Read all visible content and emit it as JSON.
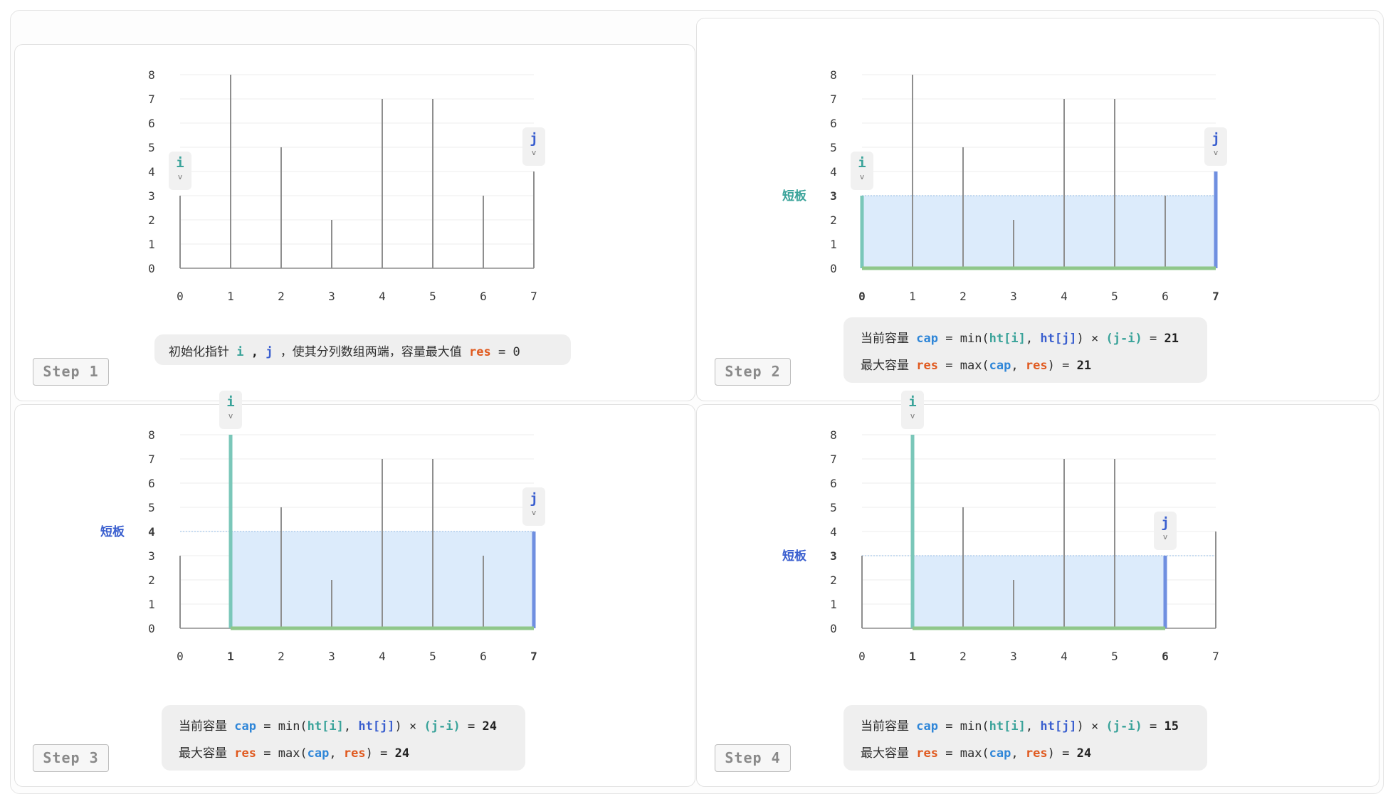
{
  "colors": {
    "bar": "#8e8e8e",
    "axis": "#a9a9a9",
    "grid": "#ececec",
    "pointer_i": "#3aa39a",
    "pointer_j": "#3a5fcf",
    "left_wall": "#7ac7b9",
    "right_wall": "#6f8fe0",
    "bottom": "#8fc78a",
    "water": "#dcebfb",
    "res": "#e0591e",
    "cap": "#2f86d8"
  },
  "heights": [
    3,
    8,
    5,
    2,
    7,
    7,
    3,
    4
  ],
  "y_ticks": [
    "0",
    "1",
    "2",
    "3",
    "4",
    "5",
    "6",
    "7",
    "8"
  ],
  "x_ticks": [
    "0",
    "1",
    "2",
    "3",
    "4",
    "5",
    "6",
    "7"
  ],
  "pointer_labels": {
    "i": "i",
    "j": "j",
    "arrow": "v"
  },
  "short_board_label": "短板",
  "panels": [
    {
      "step_label": "Step 1",
      "i": 0,
      "j": 7,
      "filled": false,
      "text": {
        "pre": "初始化指针",
        "i": "i",
        "comma": ",",
        "j": "j",
        "mid": "，使其分列数组两端，容量最大值",
        "res": "res",
        "eq": "=",
        "val": "0"
      }
    },
    {
      "step_label": "Step 2",
      "i": 0,
      "j": 7,
      "filled": true,
      "short_value": "3",
      "short_side": "i",
      "line1": {
        "label": "当前容量",
        "cap": "cap",
        "eq": "=",
        "fn": "min(",
        "hti": "ht[i]",
        "sep": ",",
        "htj": "ht[j]",
        "close": ")",
        "times": "×",
        "diff": "(j-i)",
        "eq2": "=",
        "val": "21"
      },
      "line2": {
        "label": "最大容量",
        "res": "res",
        "eq": "=",
        "fn": "max(",
        "cap": "cap",
        "sep": ",",
        "res2": "res",
        "close": ")",
        "eq2": "=",
        "val": "21"
      }
    },
    {
      "step_label": "Step 3",
      "i": 1,
      "j": 7,
      "filled": true,
      "short_value": "4",
      "short_side": "j",
      "line1": {
        "label": "当前容量",
        "cap": "cap",
        "eq": "=",
        "fn": "min(",
        "hti": "ht[i]",
        "sep": ",",
        "htj": "ht[j]",
        "close": ")",
        "times": "×",
        "diff": "(j-i)",
        "eq2": "=",
        "val": "24"
      },
      "line2": {
        "label": "最大容量",
        "res": "res",
        "eq": "=",
        "fn": "max(",
        "cap": "cap",
        "sep": ",",
        "res2": "res",
        "close": ")",
        "eq2": "=",
        "val": "24"
      }
    },
    {
      "step_label": "Step 4",
      "i": 1,
      "j": 6,
      "filled": true,
      "short_value": "3",
      "short_side": "j",
      "line1": {
        "label": "当前容量",
        "cap": "cap",
        "eq": "=",
        "fn": "min(",
        "hti": "ht[i]",
        "sep": ",",
        "htj": "ht[j]",
        "close": ")",
        "times": "×",
        "diff": "(j-i)",
        "eq2": "=",
        "val": "15"
      },
      "line2": {
        "label": "最大容量",
        "res": "res",
        "eq": "=",
        "fn": "max(",
        "cap": "cap",
        "sep": ",",
        "res2": "res",
        "close": ")",
        "eq2": "=",
        "val": "24"
      }
    }
  ]
}
